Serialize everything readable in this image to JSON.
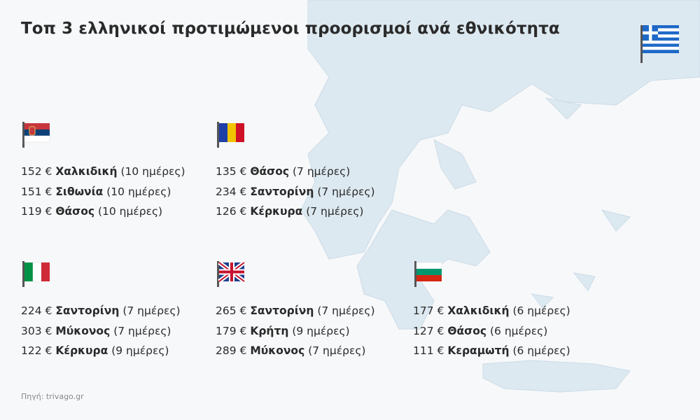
{
  "title": "Τοπ 3 ελληνικοί προτιμώμενοι προορισμοί ανά εθνικότητα",
  "header_flag_icon": "greece-flag-icon",
  "groups": [
    {
      "flag_icon": "serbia-flag-icon",
      "rows": [
        {
          "price": "152 €",
          "destination": "Χαλκιδική",
          "duration": "(10 ημέρες)"
        },
        {
          "price": "151 €",
          "destination": "Σιθωνία",
          "duration": "(10 ημέρες)"
        },
        {
          "price": "119 €",
          "destination": "Θάσος",
          "duration": "(10 ημέρες)"
        }
      ]
    },
    {
      "flag_icon": "romania-flag-icon",
      "rows": [
        {
          "price": "135 €",
          "destination": "Θάσος",
          "duration": " (7 ημέρες)"
        },
        {
          "price": "234 €",
          "destination": "Σαντορίνη",
          "duration": "(7 ημέρες)"
        },
        {
          "price": "126 €",
          "destination": "Κέρκυρα",
          "duration": "(7 ημέρες)"
        }
      ]
    },
    {
      "flag_icon": "italy-flag-icon",
      "rows": [
        {
          "price": "224 €",
          "destination": "Σαντορίνη",
          "duration": "(7 ημέρες)"
        },
        {
          "price": "303 €",
          "destination": "Μύκονος",
          "duration": "(7 ημέρες)"
        },
        {
          "price": "122 €",
          "destination": "Κέρκυρα",
          "duration": "(9 ημέρες)"
        }
      ]
    },
    {
      "flag_icon": "united-kingdom-flag-icon",
      "rows": [
        {
          "price": "265 €",
          "destination": "Σαντορίνη",
          "duration": " (7 ημέρες)"
        },
        {
          "price": "179 €",
          "destination": "Κρήτη",
          "duration": "(9 ημέρες)"
        },
        {
          "price": "289 €",
          "destination": "Μύκονος",
          "duration": "(7 ημέρες)"
        }
      ]
    },
    {
      "flag_icon": "bulgaria-flag-icon",
      "rows": [
        {
          "price": "177 €",
          "destination": "Χαλκιδική",
          "duration": "(6 ημέρες)"
        },
        {
          "price": "127 €",
          "destination": "Θάσος",
          "duration": "(6 ημέρες)"
        },
        {
          "price": "111 €",
          "destination": "Κεραμωτή",
          "duration": "(6 ημέρες)"
        }
      ]
    }
  ],
  "source": "Πηγή: trivago.gr",
  "colors": {
    "map": "#dde9f1",
    "background": "#f6f8fa",
    "text": "#2a2a2a"
  }
}
